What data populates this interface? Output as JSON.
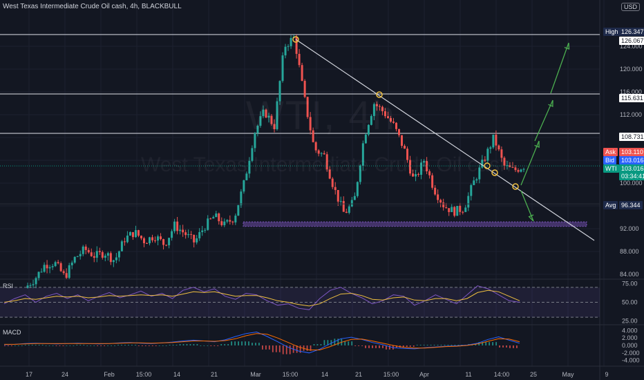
{
  "header": {
    "title": "West Texas Intermediate Crude Oil cash, 4h, BLACKBULL",
    "currency": "USD"
  },
  "watermark": {
    "ticker": "WTI, 4h",
    "name": "West Texas Intermediate Crude Oil cash"
  },
  "colors": {
    "bg": "#131722",
    "up": "#26a69a",
    "down": "#ef5350",
    "rsi": "#7e57c2",
    "rsi_ma": "#f0c040",
    "macd": "#2962ff",
    "signal": "#ff6d00",
    "arrow": "#4caf50"
  },
  "chart_data": [
    {
      "type": "candlestick",
      "title": "West Texas Intermediate Crude Oil cash, 4h, BLACKBULL",
      "x_ticks": [
        "17",
        "24",
        "Feb",
        "15:00",
        "14",
        "21",
        "Mar",
        "15:00",
        "14",
        "21",
        "15:00",
        "Apr",
        "11",
        "14:00",
        "25",
        "May",
        "9"
      ],
      "y_ticks": [
        84,
        88,
        92,
        96,
        100,
        104,
        108,
        112,
        116,
        120,
        124
      ],
      "ylim": [
        82,
        128
      ],
      "price_path": [
        [
          0,
          81.6
        ],
        [
          0.02,
          83.2
        ],
        [
          0.04,
          85.7
        ],
        [
          0.06,
          86.0
        ],
        [
          0.08,
          83.5
        ],
        [
          0.1,
          86.8
        ],
        [
          0.12,
          88.4
        ],
        [
          0.14,
          87.2
        ],
        [
          0.16,
          87.8
        ],
        [
          0.18,
          86.4
        ],
        [
          0.2,
          90.2
        ],
        [
          0.22,
          91.4
        ],
        [
          0.24,
          89.8
        ],
        [
          0.26,
          90.8
        ],
        [
          0.28,
          89.2
        ],
        [
          0.3,
          92.6
        ],
        [
          0.32,
          91.2
        ],
        [
          0.34,
          89.6
        ],
        [
          0.36,
          92.4
        ],
        [
          0.38,
          94.2
        ],
        [
          0.4,
          92.6
        ],
        [
          0.42,
          94.0
        ],
        [
          0.44,
          100.2
        ],
        [
          0.46,
          108.8
        ],
        [
          0.48,
          112.6
        ],
        [
          0.5,
          110.0
        ],
        [
          0.52,
          124.0
        ],
        [
          0.54,
          125.6
        ],
        [
          0.56,
          115.0
        ],
        [
          0.58,
          106.0
        ],
        [
          0.6,
          104.8
        ],
        [
          0.62,
          99.0
        ],
        [
          0.64,
          94.6
        ],
        [
          0.66,
          96.8
        ],
        [
          0.68,
          108.2
        ],
        [
          0.7,
          114.0
        ],
        [
          0.72,
          112.4
        ],
        [
          0.74,
          110.0
        ],
        [
          0.76,
          106.0
        ],
        [
          0.78,
          100.2
        ],
        [
          0.8,
          104.0
        ],
        [
          0.82,
          99.0
        ],
        [
          0.84,
          96.0
        ],
        [
          0.86,
          95.0
        ],
        [
          0.88,
          95.6
        ],
        [
          0.9,
          100.2
        ],
        [
          0.92,
          104.0
        ],
        [
          0.94,
          108.0
        ],
        [
          0.96,
          103.0
        ],
        [
          0.98,
          102.2
        ],
        [
          1.0,
          103.0
        ]
      ],
      "horizontal_levels": [
        {
          "label": "126.067",
          "value": 126.067
        },
        {
          "label": "115.631",
          "value": 115.631
        },
        {
          "label": "108.731",
          "value": 108.731
        }
      ],
      "trendline": {
        "from": {
          "x": "Mar 8",
          "y": 126.0
        },
        "to": {
          "x": "May 5",
          "y": 89.8
        }
      },
      "support_zone": [
        92.4,
        93.2
      ],
      "projection_arrows": "three bullish arrows up, one bearish arrow down",
      "price_tags": {
        "high": {
          "label": "High",
          "value": "126.347"
        },
        "ask": {
          "label": "Ask",
          "value": "103.110"
        },
        "bid": {
          "label": "Bid",
          "value": "103.016"
        },
        "last": {
          "label": "WTI",
          "value": "103.016",
          "countdown": "03:34:41"
        },
        "avg": {
          "label": "Avg",
          "value": "96.344"
        }
      }
    },
    {
      "type": "line",
      "title": "RSI",
      "y_ticks": [
        "75.00",
        "50.00",
        "25.00"
      ],
      "ylim": [
        20,
        80
      ],
      "series": [
        {
          "values": [
            48,
            55,
            60,
            50,
            58,
            62,
            55,
            60,
            52,
            58,
            63,
            56,
            60,
            65,
            58,
            62,
            55,
            66,
            70,
            64,
            68,
            58,
            54,
            62,
            60,
            52,
            46,
            48,
            42,
            40,
            55,
            66,
            70,
            62,
            56,
            48,
            52,
            60,
            58,
            46,
            52,
            60,
            54,
            48,
            60,
            72,
            68,
            60,
            52,
            50
          ]
        },
        {
          "values": [
            50,
            52,
            55,
            54,
            56,
            58,
            57,
            58,
            56,
            57,
            59,
            58,
            59,
            60,
            59,
            60,
            58,
            61,
            64,
            63,
            64,
            61,
            58,
            59,
            59,
            56,
            52,
            50,
            47,
            45,
            48,
            55,
            61,
            62,
            59,
            54,
            53,
            56,
            57,
            53,
            52,
            55,
            55,
            52,
            55,
            63,
            66,
            64,
            58,
            52
          ]
        }
      ]
    },
    {
      "type": "bar",
      "title": "MACD",
      "y_ticks": [
        "4.000",
        "2.000",
        "0.000",
        "-2.000",
        "-4.000"
      ],
      "ylim": [
        -4.8,
        4.8
      ],
      "series": [
        {
          "values": [
            0.2,
            0.3,
            0.5,
            0.6,
            0.5,
            0.4,
            0.5,
            0.6,
            0.5,
            0.4,
            0.5,
            0.7,
            0.8,
            0.6,
            0.5,
            0.7,
            0.9,
            1.2,
            1.4,
            1.2,
            1.0,
            1.5,
            2.4,
            3.2,
            3.6,
            2.4,
            1.0,
            -0.5,
            -1.5,
            -2.0,
            -1.0,
            0.5,
            1.8,
            2.2,
            1.6,
            0.8,
            0.2,
            -0.6,
            -0.8,
            -0.9,
            -0.6,
            -0.4,
            -0.2,
            -0.1,
            0.1,
            0.6,
            1.6,
            2.3,
            1.4,
            0.6
          ]
        },
        {
          "values": [
            0.3,
            0.3,
            0.4,
            0.5,
            0.5,
            0.5,
            0.5,
            0.5,
            0.5,
            0.5,
            0.5,
            0.6,
            0.7,
            0.7,
            0.6,
            0.7,
            0.8,
            1.0,
            1.2,
            1.2,
            1.1,
            1.3,
            1.8,
            2.6,
            3.2,
            3.0,
            2.0,
            0.8,
            -0.4,
            -1.2,
            -1.2,
            -0.3,
            0.8,
            1.6,
            1.7,
            1.2,
            0.6,
            0.0,
            -0.5,
            -0.7,
            -0.7,
            -0.5,
            -0.3,
            -0.2,
            0.0,
            0.4,
            1.1,
            1.8,
            1.7,
            1.0
          ]
        }
      ]
    }
  ]
}
